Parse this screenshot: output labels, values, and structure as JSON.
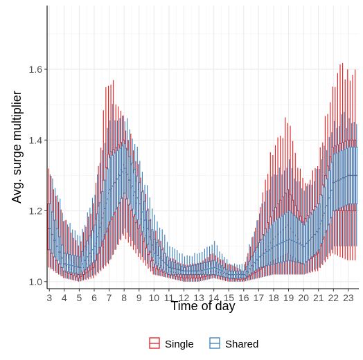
{
  "chart_data": {
    "type": "boxplot",
    "xlabel": "Time of day",
    "ylabel": "Avg. surge multiplier",
    "xlim": [
      2.85,
      23.7
    ],
    "ylim": [
      0.98,
      1.78
    ],
    "x_ticks": [
      3,
      4,
      5,
      6,
      7,
      8,
      9,
      10,
      11,
      12,
      13,
      14,
      15,
      16,
      17,
      18,
      19,
      20,
      21,
      22,
      23
    ],
    "y_ticks": [
      1.0,
      1.2,
      1.4,
      1.6
    ],
    "y_tick_labels": [
      "1.0",
      "1.2",
      "1.4",
      "1.6"
    ],
    "grid": true,
    "legend_position": "bottom",
    "boxes_per_hour": 6,
    "series": [
      {
        "name": "Single",
        "color": "#e41a1c",
        "hourly": [
          {
            "h": 3,
            "median": 1.15,
            "q1": 1.09,
            "q3": 1.22,
            "low": 1.04,
            "high": 1.32
          },
          {
            "h": 4,
            "median": 1.05,
            "q1": 1.03,
            "q3": 1.08,
            "low": 1.01,
            "high": 1.18
          },
          {
            "h": 5,
            "median": 1.02,
            "q1": 1.01,
            "q3": 1.04,
            "low": 1.0,
            "high": 1.1
          },
          {
            "h": 6,
            "median": 1.08,
            "q1": 1.04,
            "q3": 1.14,
            "low": 1.01,
            "high": 1.22
          },
          {
            "h": 7,
            "median": 1.25,
            "q1": 1.16,
            "q3": 1.36,
            "low": 1.05,
            "high": 1.58
          },
          {
            "h": 8,
            "median": 1.33,
            "q1": 1.25,
            "q3": 1.4,
            "low": 1.13,
            "high": 1.46
          },
          {
            "h": 9,
            "median": 1.2,
            "q1": 1.15,
            "q3": 1.26,
            "low": 1.07,
            "high": 1.33
          },
          {
            "h": 10,
            "median": 1.06,
            "q1": 1.04,
            "q3": 1.09,
            "low": 1.02,
            "high": 1.15
          },
          {
            "h": 11,
            "median": 1.03,
            "q1": 1.02,
            "q3": 1.04,
            "low": 1.01,
            "high": 1.07
          },
          {
            "h": 12,
            "median": 1.02,
            "q1": 1.01,
            "q3": 1.03,
            "low": 1.0,
            "high": 1.05
          },
          {
            "h": 13,
            "median": 1.02,
            "q1": 1.01,
            "q3": 1.03,
            "low": 1.0,
            "high": 1.05
          },
          {
            "h": 14,
            "median": 1.03,
            "q1": 1.02,
            "q3": 1.05,
            "low": 1.01,
            "high": 1.08
          },
          {
            "h": 15,
            "median": 1.02,
            "q1": 1.01,
            "q3": 1.03,
            "low": 1.0,
            "high": 1.05
          },
          {
            "h": 16,
            "median": 1.01,
            "q1": 1.005,
            "q3": 1.02,
            "low": 1.0,
            "high": 1.03
          },
          {
            "h": 17,
            "median": 1.06,
            "q1": 1.03,
            "q3": 1.1,
            "low": 1.01,
            "high": 1.18
          },
          {
            "h": 18,
            "median": 1.12,
            "q1": 1.06,
            "q3": 1.2,
            "low": 1.02,
            "high": 1.38
          },
          {
            "h": 19,
            "median": 1.16,
            "q1": 1.08,
            "q3": 1.26,
            "low": 1.02,
            "high": 1.45
          },
          {
            "h": 20,
            "median": 1.1,
            "q1": 1.05,
            "q3": 1.17,
            "low": 1.02,
            "high": 1.28
          },
          {
            "h": 21,
            "median": 1.14,
            "q1": 1.08,
            "q3": 1.22,
            "low": 1.03,
            "high": 1.32
          },
          {
            "h": 22,
            "median": 1.28,
            "q1": 1.2,
            "q3": 1.38,
            "low": 1.08,
            "high": 1.58
          },
          {
            "h": 23,
            "median": 1.3,
            "q1": 1.2,
            "q3": 1.4,
            "low": 1.06,
            "high": 1.6
          }
        ]
      },
      {
        "name": "Shared",
        "color": "#377eb8",
        "hourly": [
          {
            "h": 3,
            "median": 1.15,
            "q1": 1.09,
            "q3": 1.22,
            "low": 1.04,
            "high": 1.32
          },
          {
            "h": 4,
            "median": 1.05,
            "q1": 1.03,
            "q3": 1.08,
            "low": 1.01,
            "high": 1.18
          },
          {
            "h": 5,
            "median": 1.04,
            "q1": 1.02,
            "q3": 1.07,
            "low": 1.0,
            "high": 1.13
          },
          {
            "h": 6,
            "median": 1.1,
            "q1": 1.06,
            "q3": 1.16,
            "low": 1.02,
            "high": 1.25
          },
          {
            "h": 7,
            "median": 1.26,
            "q1": 1.17,
            "q3": 1.35,
            "low": 1.06,
            "high": 1.48
          },
          {
            "h": 8,
            "median": 1.32,
            "q1": 1.25,
            "q3": 1.39,
            "low": 1.15,
            "high": 1.48
          },
          {
            "h": 9,
            "median": 1.22,
            "q1": 1.16,
            "q3": 1.28,
            "low": 1.08,
            "high": 1.34
          },
          {
            "h": 10,
            "median": 1.08,
            "q1": 1.05,
            "q3": 1.12,
            "low": 1.02,
            "high": 1.18
          },
          {
            "h": 11,
            "median": 1.04,
            "q1": 1.02,
            "q3": 1.06,
            "low": 1.01,
            "high": 1.1
          },
          {
            "h": 12,
            "median": 1.03,
            "q1": 1.02,
            "q3": 1.04,
            "low": 1.0,
            "high": 1.07
          },
          {
            "h": 13,
            "median": 1.03,
            "q1": 1.02,
            "q3": 1.05,
            "low": 1.0,
            "high": 1.08
          },
          {
            "h": 14,
            "median": 1.04,
            "q1": 1.02,
            "q3": 1.06,
            "low": 1.01,
            "high": 1.11
          },
          {
            "h": 15,
            "median": 1.02,
            "q1": 1.01,
            "q3": 1.03,
            "low": 1.0,
            "high": 1.05
          },
          {
            "h": 16,
            "median": 1.02,
            "q1": 1.01,
            "q3": 1.03,
            "low": 1.0,
            "high": 1.05
          },
          {
            "h": 17,
            "median": 1.07,
            "q1": 1.04,
            "q3": 1.11,
            "low": 1.01,
            "high": 1.2
          },
          {
            "h": 18,
            "median": 1.1,
            "q1": 1.05,
            "q3": 1.17,
            "low": 1.02,
            "high": 1.3
          },
          {
            "h": 19,
            "median": 1.12,
            "q1": 1.06,
            "q3": 1.2,
            "low": 1.02,
            "high": 1.33
          },
          {
            "h": 20,
            "median": 1.1,
            "q1": 1.05,
            "q3": 1.16,
            "low": 1.02,
            "high": 1.26
          },
          {
            "h": 21,
            "median": 1.15,
            "q1": 1.09,
            "q3": 1.22,
            "low": 1.04,
            "high": 1.32
          },
          {
            "h": 22,
            "median": 1.28,
            "q1": 1.2,
            "q3": 1.36,
            "low": 1.1,
            "high": 1.46
          },
          {
            "h": 23,
            "median": 1.3,
            "q1": 1.22,
            "q3": 1.38,
            "low": 1.1,
            "high": 1.46
          }
        ]
      }
    ]
  }
}
